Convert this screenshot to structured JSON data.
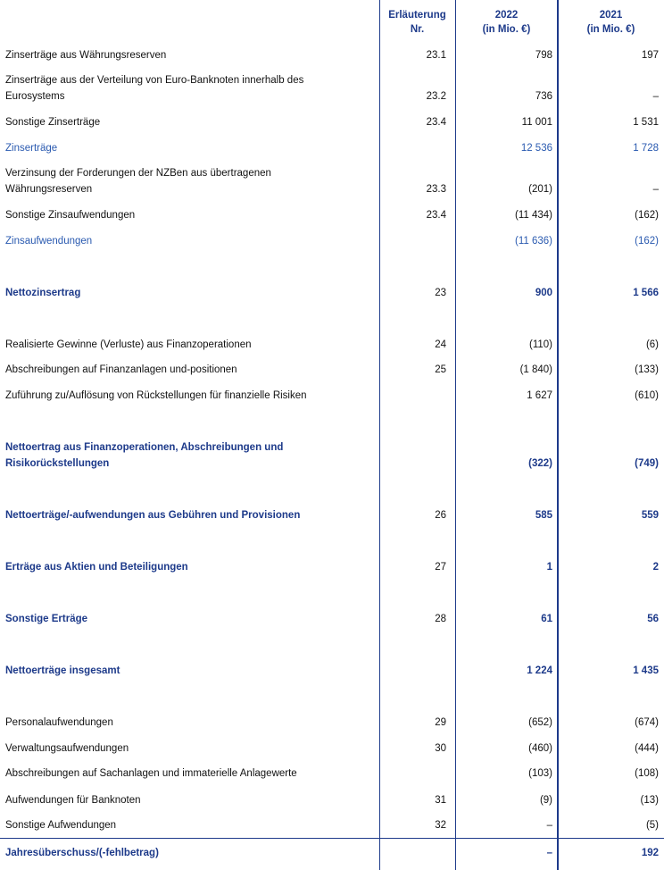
{
  "header": {
    "note": [
      "Erläuterung",
      "Nr."
    ],
    "y2022": [
      "2022",
      "(in Mio. €)"
    ],
    "y2021": [
      "2021",
      "(in Mio. €)"
    ]
  },
  "table": {
    "rows": [
      {
        "label": [
          "Zinserträge aus Währungsreserven"
        ],
        "note": "23.1",
        "v2022": "798",
        "v2021": "197",
        "kind": "plain"
      },
      {
        "label": [
          "Zinserträge aus der Verteilung von Euro-Banknoten innerhalb des",
          "Eurosystems"
        ],
        "note": "23.2",
        "v2022": "736",
        "v2021": "–",
        "kind": "plain"
      },
      {
        "label": [
          "Sonstige Zinserträge"
        ],
        "note": "23.4",
        "v2022": "11 001",
        "v2021": "1 531",
        "kind": "plain"
      },
      {
        "label": [
          "Zinserträge"
        ],
        "note": "",
        "v2022": "12 536",
        "v2021": "1 728",
        "kind": "subtotal"
      },
      {
        "label": [
          "Verzinsung der Forderungen der NZBen aus übertragenen",
          "Währungsreserven"
        ],
        "note": "23.3",
        "v2022": "(201)",
        "v2021": "–",
        "kind": "plain"
      },
      {
        "label": [
          "Sonstige Zinsaufwendungen"
        ],
        "note": "23.4",
        "v2022": "(11 434)",
        "v2021": "(162)",
        "kind": "plain"
      },
      {
        "label": [
          "Zinsaufwendungen"
        ],
        "note": "",
        "v2022": "(11 636)",
        "v2021": "(162)",
        "kind": "subtotal"
      },
      {
        "label": [
          "Nettozinsertrag"
        ],
        "note": "23",
        "v2022": "900",
        "v2021": "1 566",
        "kind": "total"
      },
      {
        "label": [
          "Realisierte Gewinne (Verluste) aus Finanzoperationen"
        ],
        "note": "24",
        "v2022": "(110)",
        "v2021": "(6)",
        "kind": "plain"
      },
      {
        "label": [
          "Abschreibungen auf Finanzanlagen und-positionen"
        ],
        "note": "25",
        "v2022": "(1 840)",
        "v2021": "(133)",
        "kind": "plain"
      },
      {
        "label": [
          "Zuführung zu/Auflösung von Rückstellungen für finanzielle Risiken"
        ],
        "note": "",
        "v2022": "1 627",
        "v2021": "(610)",
        "kind": "plain"
      },
      {
        "label": [
          "Nettoertrag aus Finanzoperationen, Abschreibungen und",
          "Risikorückstellungen"
        ],
        "note": "",
        "v2022": "(322)",
        "v2021": "(749)",
        "kind": "total"
      },
      {
        "label": [
          "Nettoerträge/-aufwendungen aus Gebühren und Provisionen"
        ],
        "note": "26",
        "v2022": "585",
        "v2021": "559",
        "kind": "total"
      },
      {
        "label": [
          "Erträge aus Aktien und Beteiligungen"
        ],
        "note": "27",
        "v2022": "1",
        "v2021": "2",
        "kind": "total"
      },
      {
        "label": [
          "Sonstige Erträge"
        ],
        "note": "28",
        "v2022": "61",
        "v2021": "56",
        "kind": "total"
      },
      {
        "label": [
          "Nettoerträge insgesamt"
        ],
        "note": "",
        "v2022": "1 224",
        "v2021": "1 435",
        "kind": "total"
      },
      {
        "label": [
          "Personalaufwendungen"
        ],
        "note": "29",
        "v2022": "(652)",
        "v2021": "(674)",
        "kind": "plain"
      },
      {
        "label": [
          "Verwaltungsaufwendungen"
        ],
        "note": "30",
        "v2022": "(460)",
        "v2021": "(444)",
        "kind": "plain"
      },
      {
        "label": [
          "Abschreibungen auf Sachanlagen und immaterielle Anlagewerte"
        ],
        "note": "",
        "v2022": "(103)",
        "v2021": "(108)",
        "kind": "plain"
      },
      {
        "label": [
          "Aufwendungen für Banknoten"
        ],
        "note": "31",
        "v2022": "(9)",
        "v2021": "(13)",
        "kind": "plain"
      },
      {
        "label": [
          "Sonstige Aufwendungen"
        ],
        "note": "32",
        "v2022": "–",
        "v2021": "(5)",
        "kind": "plain"
      },
      {
        "label": [
          "Jahresüberschuss/(-fehlbetrag)"
        ],
        "note": "",
        "v2022": "–",
        "v2021": "192",
        "kind": "total"
      }
    ]
  }
}
